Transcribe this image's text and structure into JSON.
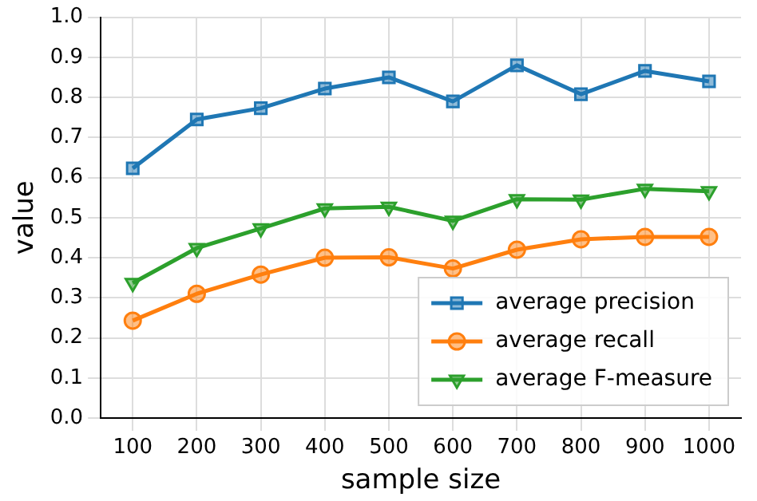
{
  "chart_data": {
    "type": "line",
    "xlabel": "sample size",
    "ylabel": "value",
    "categories": [
      "100",
      "200",
      "300",
      "400",
      "500",
      "600",
      "700",
      "800",
      "900",
      "1000"
    ],
    "ylim": [
      0,
      1
    ],
    "yticks": [
      {
        "value": 0,
        "label": "0.0"
      },
      {
        "value": 0.1,
        "label": "0.1"
      },
      {
        "value": 0.2,
        "label": "0.2"
      },
      {
        "value": 0.3,
        "label": "0.3"
      },
      {
        "value": 0.4,
        "label": "0.4"
      },
      {
        "value": 0.5,
        "label": "0.5"
      },
      {
        "value": 0.6,
        "label": "0.6"
      },
      {
        "value": 0.7,
        "label": "0.7"
      },
      {
        "value": 0.8,
        "label": "0.8"
      },
      {
        "value": 0.9,
        "label": "0.9"
      },
      {
        "value": 1,
        "label": "1.0"
      }
    ],
    "grid": true,
    "legend": "bottom right",
    "line_style": "solid",
    "series": [
      {
        "name": "average precision",
        "color": "#1f77b4",
        "marker": "square",
        "values": [
          0.623,
          0.745,
          0.773,
          0.822,
          0.85,
          0.79,
          0.88,
          0.808,
          0.866,
          0.84
        ]
      },
      {
        "name": "average recall",
        "color": "#ff7f0e",
        "marker": "circle",
        "values": [
          0.243,
          0.31,
          0.358,
          0.4,
          0.401,
          0.373,
          0.42,
          0.446,
          0.452,
          0.452
        ]
      },
      {
        "name": "average F-measure",
        "color": "#2ca02c",
        "marker": "triangle",
        "values": [
          0.337,
          0.424,
          0.473,
          0.523,
          0.527,
          0.492,
          0.546,
          0.545,
          0.572,
          0.566
        ]
      }
    ]
  }
}
